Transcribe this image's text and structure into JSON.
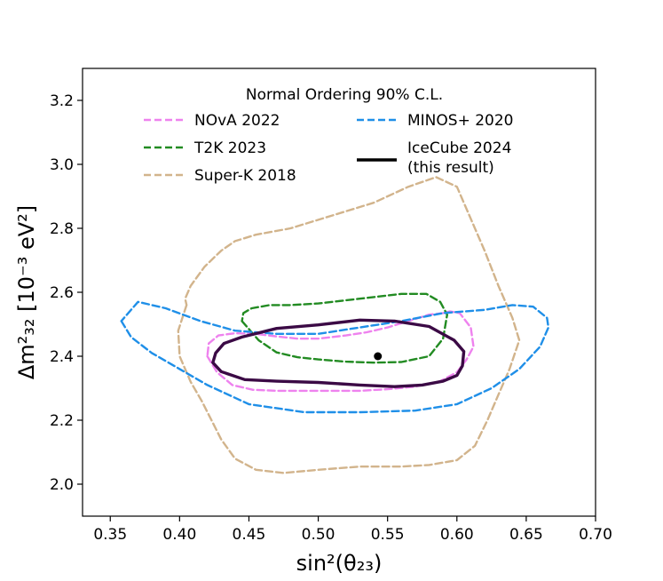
{
  "chart_data": {
    "type": "line",
    "title": "",
    "xlabel": "sin²(θ₂₃)",
    "ylabel": "Δm²₃₂ [10⁻³ eV²]",
    "xlim": [
      0.33,
      0.7
    ],
    "ylim": [
      1.9,
      3.3
    ],
    "x_ticks": [
      0.35,
      0.4,
      0.45,
      0.5,
      0.55,
      0.6,
      0.65,
      0.7
    ],
    "x_tick_labels": [
      "0.35",
      "0.40",
      "0.45",
      "0.50",
      "0.55",
      "0.60",
      "0.65",
      "0.70"
    ],
    "y_ticks": [
      2.0,
      2.2,
      2.4,
      2.6,
      2.8,
      3.0,
      3.2
    ],
    "y_tick_labels": [
      "2.0",
      "2.2",
      "2.4",
      "2.6",
      "2.8",
      "3.0",
      "3.2"
    ],
    "grid": false,
    "legend": {
      "title": "Normal Ordering 90% C.L.",
      "placement": "top-center",
      "columns": 2
    },
    "best_fit": {
      "name": "IceCube 2024 best fit",
      "x": 0.543,
      "y": 2.4
    },
    "series": [
      {
        "name": "NOvA 2022",
        "style": "dashed",
        "color": "#ee82ee",
        "x": [
          0.42,
          0.427,
          0.438,
          0.453,
          0.47,
          0.49,
          0.51,
          0.53,
          0.55,
          0.57,
          0.588,
          0.6,
          0.607,
          0.612,
          0.61,
          0.602,
          0.595,
          0.59,
          0.58,
          0.565,
          0.55,
          0.535,
          0.52,
          0.5,
          0.485,
          0.47,
          0.455,
          0.44,
          0.428,
          0.421,
          0.42
        ],
        "y": [
          2.4,
          2.35,
          2.31,
          2.295,
          2.292,
          2.292,
          2.292,
          2.292,
          2.297,
          2.305,
          2.322,
          2.35,
          2.39,
          2.43,
          2.49,
          2.535,
          2.54,
          2.535,
          2.53,
          2.51,
          2.49,
          2.475,
          2.465,
          2.455,
          2.455,
          2.462,
          2.47,
          2.472,
          2.465,
          2.44,
          2.4
        ]
      },
      {
        "name": "T2K 2023",
        "style": "dashed",
        "color": "#228b22",
        "x": [
          0.445,
          0.457,
          0.47,
          0.485,
          0.5,
          0.52,
          0.54,
          0.56,
          0.58,
          0.59,
          0.593,
          0.588,
          0.578,
          0.56,
          0.54,
          0.52,
          0.5,
          0.48,
          0.465,
          0.452,
          0.446,
          0.445
        ],
        "y": [
          2.51,
          2.45,
          2.412,
          2.397,
          2.39,
          2.383,
          2.38,
          2.382,
          2.4,
          2.455,
          2.53,
          2.57,
          2.595,
          2.595,
          2.585,
          2.575,
          2.565,
          2.56,
          2.56,
          2.55,
          2.535,
          2.51
        ]
      },
      {
        "name": "Super-K 2018",
        "style": "dashed",
        "color": "#d2b48c",
        "x": [
          0.405,
          0.399,
          0.4,
          0.408,
          0.416,
          0.423,
          0.43,
          0.44,
          0.455,
          0.475,
          0.5,
          0.53,
          0.56,
          0.58,
          0.6,
          0.613,
          0.622,
          0.63,
          0.638,
          0.645,
          0.64,
          0.63,
          0.62,
          0.61,
          0.6,
          0.585,
          0.565,
          0.54,
          0.51,
          0.48,
          0.455,
          0.44,
          0.43,
          0.418,
          0.408,
          0.404,
          0.405
        ],
        "y": [
          2.56,
          2.48,
          2.4,
          2.32,
          2.26,
          2.2,
          2.14,
          2.08,
          2.045,
          2.035,
          2.045,
          2.055,
          2.055,
          2.06,
          2.075,
          2.12,
          2.2,
          2.28,
          2.36,
          2.45,
          2.52,
          2.62,
          2.73,
          2.83,
          2.93,
          2.96,
          2.93,
          2.88,
          2.84,
          2.8,
          2.78,
          2.76,
          2.73,
          2.68,
          2.62,
          2.58,
          2.56
        ]
      },
      {
        "name": "MINOS+ 2020",
        "style": "dashed",
        "color": "#1f8fe8",
        "x": [
          0.358,
          0.365,
          0.38,
          0.4,
          0.42,
          0.45,
          0.49,
          0.53,
          0.57,
          0.6,
          0.625,
          0.645,
          0.66,
          0.666,
          0.665,
          0.655,
          0.64,
          0.62,
          0.59,
          0.56,
          0.53,
          0.5,
          0.47,
          0.44,
          0.415,
          0.39,
          0.37,
          0.358
        ],
        "y": [
          2.51,
          2.46,
          2.41,
          2.36,
          2.31,
          2.25,
          2.225,
          2.225,
          2.23,
          2.25,
          2.3,
          2.36,
          2.43,
          2.49,
          2.52,
          2.555,
          2.56,
          2.545,
          2.535,
          2.51,
          2.49,
          2.47,
          2.47,
          2.48,
          2.51,
          2.55,
          2.57,
          2.51
        ]
      },
      {
        "name": "IceCube 2024 (this result)",
        "style": "solid",
        "color": "#3b0a45",
        "x": [
          0.426,
          0.424,
          0.43,
          0.447,
          0.47,
          0.5,
          0.53,
          0.555,
          0.575,
          0.59,
          0.6,
          0.604,
          0.605,
          0.598,
          0.58,
          0.555,
          0.53,
          0.5,
          0.47,
          0.445,
          0.432,
          0.426
        ],
        "y": [
          2.41,
          2.38,
          2.352,
          2.327,
          2.322,
          2.318,
          2.31,
          2.305,
          2.31,
          2.322,
          2.34,
          2.37,
          2.415,
          2.45,
          2.493,
          2.51,
          2.513,
          2.498,
          2.487,
          2.46,
          2.44,
          2.41
        ]
      }
    ]
  }
}
